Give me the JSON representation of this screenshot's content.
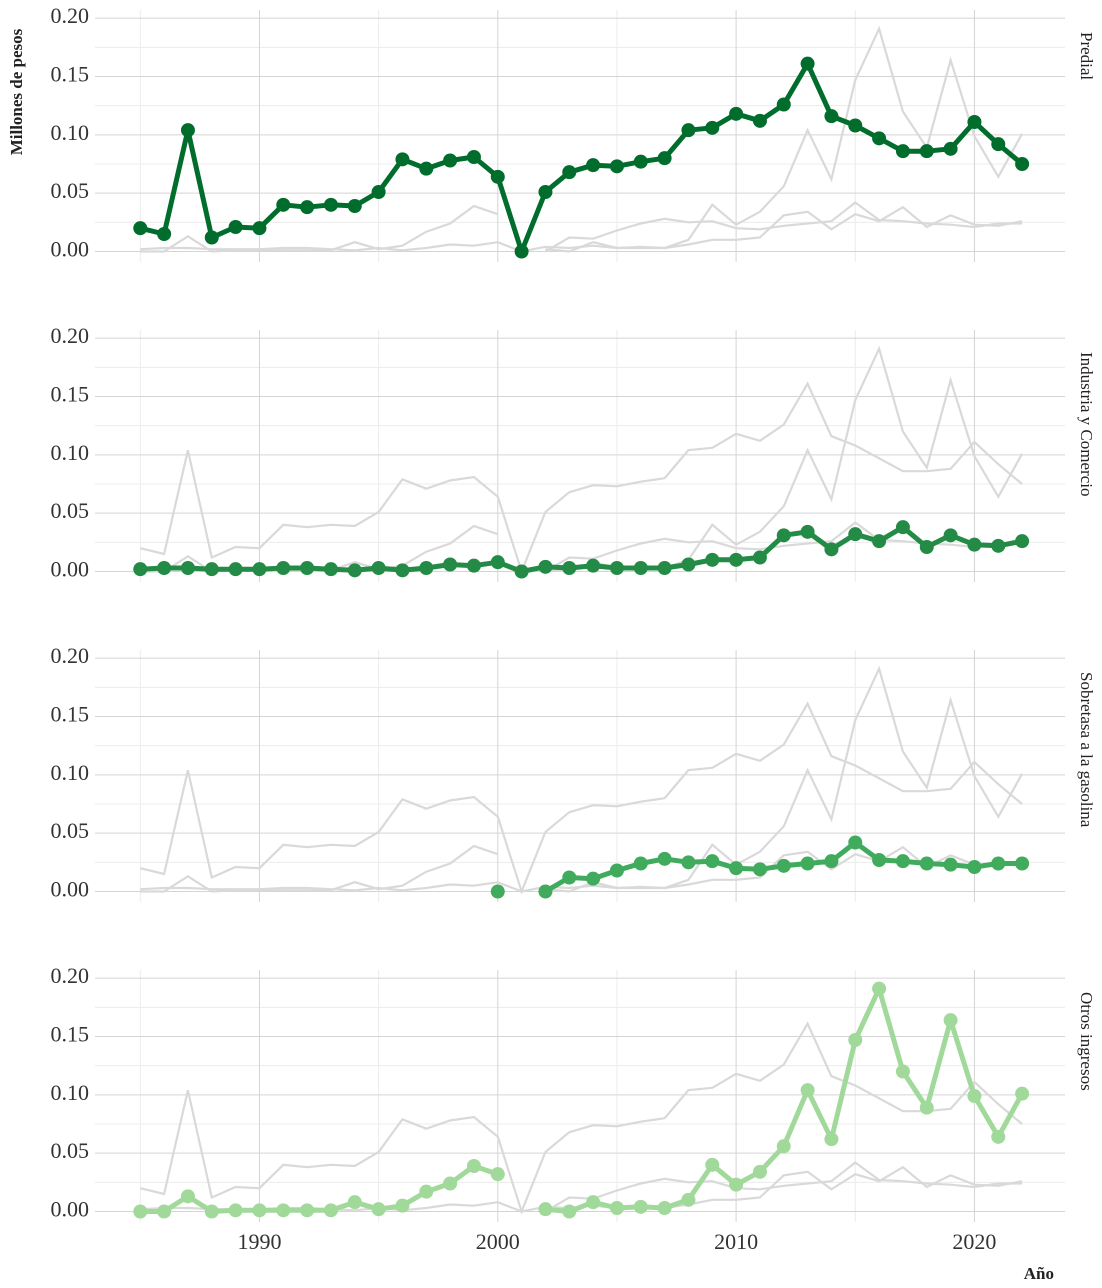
{
  "chart_data": {
    "type": "line",
    "y_label": "Millones de pesos",
    "x_label": "Año",
    "x": [
      1985,
      1986,
      1987,
      1988,
      1989,
      1990,
      1991,
      1992,
      1993,
      1994,
      1995,
      1996,
      1997,
      1998,
      1999,
      2000,
      2001,
      2002,
      2003,
      2004,
      2005,
      2006,
      2007,
      2008,
      2009,
      2010,
      2011,
      2012,
      2013,
      2014,
      2015,
      2016,
      2017,
      2018,
      2019,
      2020,
      2021,
      2022
    ],
    "series": [
      {
        "name": "Predial",
        "color": "#006d2c",
        "values": [
          0.02,
          0.015,
          0.104,
          0.012,
          0.021,
          0.02,
          0.04,
          0.038,
          0.04,
          0.039,
          0.051,
          0.079,
          0.071,
          0.078,
          0.081,
          0.064,
          0.0,
          0.051,
          0.068,
          0.074,
          0.073,
          0.077,
          0.08,
          0.104,
          0.106,
          0.118,
          0.112,
          0.126,
          0.161,
          0.116,
          0.108,
          0.097,
          0.086,
          0.086,
          0.088,
          0.111,
          0.092,
          0.075
        ]
      },
      {
        "name": "Industria y Comercio",
        "color": "#238b45",
        "values": [
          0.002,
          0.003,
          0.003,
          0.002,
          0.002,
          0.002,
          0.003,
          0.003,
          0.002,
          0.001,
          0.003,
          0.001,
          0.003,
          0.006,
          0.005,
          0.008,
          0.0,
          0.004,
          0.003,
          0.005,
          0.003,
          0.003,
          0.003,
          0.006,
          0.01,
          0.01,
          0.012,
          0.031,
          0.034,
          0.019,
          0.032,
          0.026,
          0.038,
          0.021,
          0.031,
          0.023,
          0.022,
          0.026
        ]
      },
      {
        "name": "Sobretasa a la gasolina",
        "color": "#41ab5d",
        "values": [
          null,
          null,
          null,
          null,
          null,
          null,
          null,
          null,
          null,
          null,
          null,
          null,
          null,
          null,
          null,
          0.0,
          null,
          0.0,
          0.012,
          0.011,
          0.018,
          0.024,
          0.028,
          0.025,
          0.026,
          0.02,
          0.019,
          0.022,
          0.024,
          0.026,
          0.042,
          0.027,
          0.026,
          0.024,
          0.023,
          0.021,
          0.024,
          0.024
        ]
      },
      {
        "name": "Otros ingresos",
        "color": "#a1d99b",
        "values": [
          0.0,
          0.0,
          0.013,
          0.0,
          0.001,
          0.001,
          0.001,
          0.001,
          0.001,
          0.008,
          0.002,
          0.005,
          0.017,
          0.024,
          0.039,
          0.032,
          null,
          0.002,
          0.0,
          0.008,
          0.003,
          0.004,
          0.003,
          0.01,
          0.04,
          0.023,
          0.034,
          0.056,
          0.104,
          0.062,
          0.147,
          0.191,
          0.12,
          0.089,
          0.164,
          0.099,
          0.064,
          0.101
        ]
      }
    ],
    "xlim": [
      1983.1,
      2023.8
    ],
    "xticks": [
      1990,
      2000,
      2010,
      2020
    ],
    "ylim": [
      -0.009,
      0.207
    ],
    "yticks": [
      {
        "value": 0,
        "label": "0.00"
      },
      {
        "value": 0.05,
        "label": "0.05"
      },
      {
        "value": 0.1,
        "label": "0.10"
      },
      {
        "value": 0.15,
        "label": "0.15"
      },
      {
        "value": 0.2,
        "label": "0.20"
      }
    ],
    "grid": true,
    "context_color": "#d9d9d9"
  }
}
